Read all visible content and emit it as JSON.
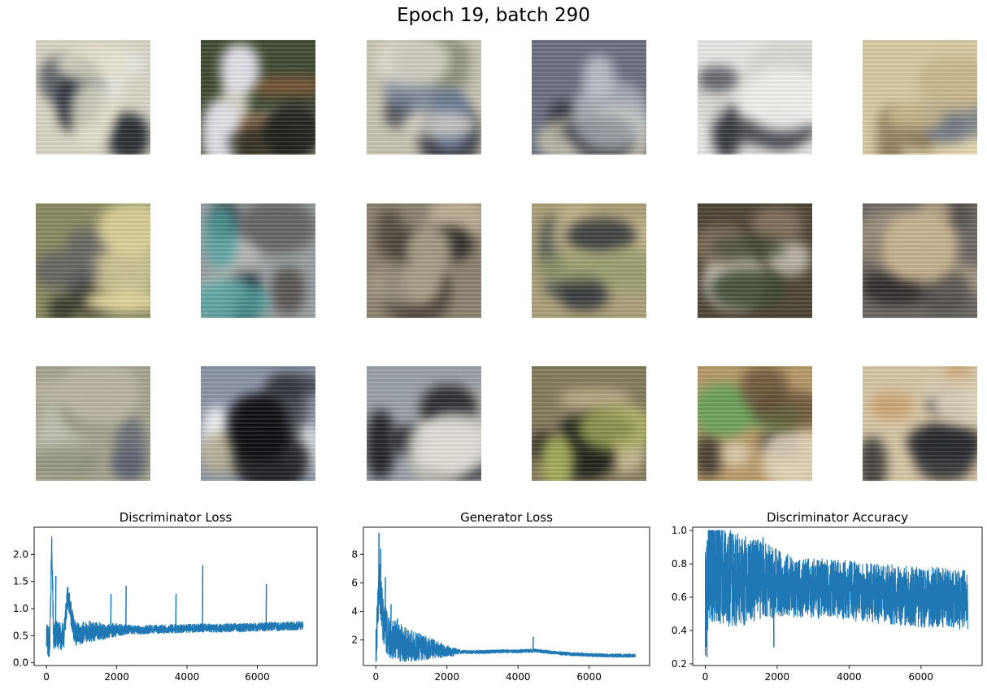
{
  "figure": {
    "title": "Epoch 19, batch 290"
  },
  "samples": {
    "rows": 3,
    "cols": 6,
    "tiles": [
      {
        "bg": "#d9d5c6",
        "blobs": [
          "#151a22",
          "#eceeee",
          "#2b3340",
          "#e8e4d0"
        ]
      },
      {
        "bg": "#3e4a33",
        "blobs": [
          "#f4ece2",
          "#8a5a3a",
          "#e8e6ef",
          "#1d2018"
        ]
      },
      {
        "bg": "#c7c3b3",
        "blobs": [
          "#2b2e38",
          "#6a7891",
          "#8a8f7a",
          "#e6e2d6"
        ]
      },
      {
        "bg": "#6b7080",
        "blobs": [
          "#1b1c22",
          "#d8d2bc",
          "#3a3c45",
          "#bfc6cc"
        ]
      },
      {
        "bg": "#e9e7e4",
        "blobs": [
          "#2f3238",
          "#d7d5cf",
          "#4a4d55",
          "#f2f1ee"
        ]
      },
      {
        "bg": "#d8cba3",
        "blobs": [
          "#8d7a5b",
          "#eadfb8",
          "#6e7685",
          "#c9b88c"
        ]
      },
      {
        "bg": "#8a8a62",
        "blobs": [
          "#2a2a24",
          "#d2c99a",
          "#5c5a62",
          "#e4d9a0"
        ]
      },
      {
        "bg": "#9aa0a2",
        "blobs": [
          "#0c0f18",
          "#55514d",
          "#c7c9c3",
          "#4ea3a0"
        ]
      },
      {
        "bg": "#8c8270",
        "blobs": [
          "#3d352f",
          "#c6b79c",
          "#2d2a26",
          "#a9a089"
        ]
      },
      {
        "bg": "#aba07a",
        "blobs": [
          "#4e5550",
          "#cbbd90",
          "#33373b",
          "#99a070"
        ]
      },
      {
        "bg": "#4d4436",
        "blobs": [
          "#1c1a1c",
          "#eeeadd",
          "#8a7862",
          "#3a4530"
        ]
      },
      {
        "bg": "#6d6863",
        "blobs": [
          "#2a2626",
          "#a99c86",
          "#4d4a48",
          "#c9b592"
        ]
      },
      {
        "bg": "#a7a58f",
        "blobs": [
          "#c3c4b8",
          "#5a6070",
          "#8d8f78",
          "#bdb9a4"
        ]
      },
      {
        "bg": "#8c95a6",
        "blobs": [
          "#eef0f2",
          "#2c2f33",
          "#b2aa90",
          "#0e0f12"
        ]
      },
      {
        "bg": "#9aa1a8",
        "blobs": [
          "#1c1d22",
          "#c4bdb0",
          "#2f3034",
          "#e6e3dc"
        ]
      },
      {
        "bg": "#857a5e",
        "blobs": [
          "#2a2622",
          "#c7bb94",
          "#1c2017",
          "#a8b05c"
        ]
      },
      {
        "bg": "#b69a6a",
        "blobs": [
          "#2f2a27",
          "#e8dcc4",
          "#66a25a",
          "#5c4733"
        ]
      },
      {
        "bg": "#d6c6a6",
        "blobs": [
          "#0f1218",
          "#c89c68",
          "#23262c",
          "#e0d7c0"
        ]
      }
    ]
  },
  "chart_data": [
    {
      "type": "line",
      "title": "Discriminator Loss",
      "xlim": [
        -350,
        7700
      ],
      "ylim": [
        -0.05,
        2.5
      ],
      "xticks": [
        0,
        2000,
        4000,
        6000
      ],
      "xtick_labels": [
        "0",
        "2000",
        "4000",
        "6000"
      ],
      "yticks": [
        0.0,
        0.5,
        1.0,
        1.5,
        2.0
      ],
      "ytick_labels": [
        "0.0",
        "0.5",
        "1.0",
        "1.5",
        "2.0"
      ],
      "color": "#1f77b4",
      "x": [
        0,
        50,
        100,
        150,
        200,
        300,
        400,
        500,
        600,
        800,
        1000,
        1200,
        1500,
        1800,
        2000,
        2300,
        2600,
        3000,
        3400,
        3700,
        4000,
        4400,
        4800,
        5200,
        5600,
        6000,
        6300,
        6700,
        7000,
        7300
      ],
      "y": [
        0.6,
        0.35,
        0.45,
        2.35,
        0.5,
        0.55,
        0.5,
        0.52,
        1.25,
        0.55,
        0.55,
        0.58,
        0.57,
        0.6,
        0.6,
        0.62,
        0.6,
        0.62,
        0.62,
        0.63,
        0.63,
        0.64,
        0.64,
        0.65,
        0.65,
        0.66,
        0.67,
        0.67,
        0.68,
        0.69
      ],
      "spikes": [
        [
          150,
          2.35
        ],
        [
          260,
          1.6
        ],
        [
          610,
          1.28
        ],
        [
          1830,
          1.27
        ],
        [
          2260,
          1.42
        ],
        [
          3680,
          1.27
        ],
        [
          4440,
          1.8
        ],
        [
          6250,
          1.45
        ]
      ],
      "noise": {
        "start": 0.3,
        "end": 0.08,
        "floor": 0.0,
        "seed": 7
      }
    },
    {
      "type": "line",
      "title": "Generator Loss",
      "xlim": [
        -350,
        7700
      ],
      "ylim": [
        0.2,
        9.9
      ],
      "xticks": [
        0,
        2000,
        4000,
        6000
      ],
      "xtick_labels": [
        "0",
        "2000",
        "4000",
        "6000"
      ],
      "yticks": [
        2,
        4,
        6,
        8
      ],
      "ytick_labels": [
        "2",
        "4",
        "6",
        "8"
      ],
      "color": "#1f77b4",
      "x": [
        0,
        50,
        100,
        150,
        200,
        300,
        400,
        500,
        700,
        900,
        1200,
        1500,
        1800,
        2000,
        2500,
        3000,
        3500,
        4000,
        4500,
        5000,
        5500,
        6000,
        6500,
        7000,
        7300
      ],
      "y": [
        1.0,
        3.5,
        6.0,
        4.5,
        3.5,
        2.5,
        2.2,
        2.0,
        1.8,
        1.6,
        1.5,
        1.4,
        1.3,
        1.2,
        1.15,
        1.15,
        1.2,
        1.2,
        1.25,
        1.1,
        1.0,
        0.95,
        0.9,
        0.9,
        0.9
      ],
      "spikes": [
        [
          80,
          9.5
        ],
        [
          130,
          8.4
        ],
        [
          260,
          6.4
        ],
        [
          420,
          4.5
        ],
        [
          600,
          3.5
        ],
        [
          4420,
          2.2
        ]
      ],
      "noise": {
        "start": 1.8,
        "end": 0.12,
        "floor": 0.5,
        "seed": 11
      }
    },
    {
      "type": "line",
      "title": "Discriminator Accuracy",
      "xlim": [
        -350,
        7700
      ],
      "ylim": [
        0.19,
        1.02
      ],
      "xticks": [
        0,
        2000,
        4000,
        6000
      ],
      "xtick_labels": [
        "0",
        "2000",
        "4000",
        "6000"
      ],
      "yticks": [
        0.2,
        0.4,
        0.6,
        0.8,
        1.0
      ],
      "ytick_labels": [
        "0.2",
        "0.4",
        "0.6",
        "0.8",
        "1.0"
      ],
      "color": "#1f77b4",
      "x": [
        0,
        100,
        300,
        600,
        1000,
        1500,
        2000,
        2500,
        3000,
        3500,
        4000,
        4500,
        5000,
        5500,
        6000,
        6500,
        7000,
        7300
      ],
      "y": [
        0.55,
        0.8,
        0.75,
        0.72,
        0.7,
        0.7,
        0.68,
        0.66,
        0.65,
        0.65,
        0.64,
        0.63,
        0.62,
        0.61,
        0.6,
        0.6,
        0.59,
        0.58
      ],
      "spikes": [
        [
          40,
          0.24
        ],
        [
          120,
          1.0
        ],
        [
          250,
          1.0
        ],
        [
          1900,
          0.3
        ],
        [
          1600,
          0.96
        ]
      ],
      "noise": {
        "start": 0.34,
        "end": 0.18,
        "floor": 0.25,
        "ceil": 1.0,
        "seed": 23
      }
    }
  ]
}
